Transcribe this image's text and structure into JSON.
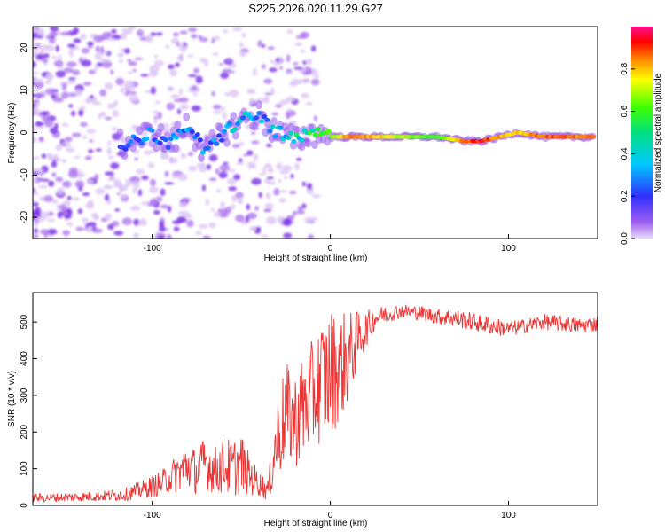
{
  "figure": {
    "title": "S225.2026.020.11.29.G27"
  },
  "chart_data": [
    {
      "type": "heatmap",
      "title": "S225.2026.020.11.29.G27",
      "xlabel": "Height of straight line (km)",
      "ylabel": "Frequency (Hz)",
      "xlim": [
        -167,
        150
      ],
      "ylim": [
        -25,
        25
      ],
      "xticks": [
        -100,
        0,
        100
      ],
      "xtick_labels": [
        "-100",
        "0",
        "100"
      ],
      "yticks": [
        -20,
        -10,
        0,
        10,
        20
      ],
      "ytick_labels": [
        "-20",
        "-10",
        "0",
        "10",
        "20"
      ],
      "colorbar": {
        "label": "Normalized spectral amplitude",
        "range": [
          0,
          1
        ],
        "ticks": [
          0,
          0.2,
          0.4,
          0.6,
          0.8
        ],
        "tick_labels": [
          "0.0",
          "0.2",
          "0.4",
          "0.6",
          "0.8"
        ]
      },
      "ridge": {
        "height_km": [
          -118,
          -110,
          -100,
          -90,
          -80,
          -70,
          -60,
          -50,
          -40,
          -30,
          -20,
          -10,
          0,
          10,
          20,
          40,
          60,
          75,
          85,
          95,
          105,
          120,
          135,
          148
        ],
        "frequency_hz": [
          -3,
          -2,
          0,
          -3,
          2,
          -5,
          0,
          3,
          4,
          0,
          -2,
          0,
          -1,
          -1,
          -1,
          -1,
          -1,
          -2,
          -2,
          -1,
          0,
          -1,
          -1,
          -1
        ],
        "amplitude": [
          0.2,
          0.25,
          0.3,
          0.3,
          0.3,
          0.3,
          0.35,
          0.4,
          0.3,
          0.4,
          0.5,
          0.55,
          0.65,
          0.9,
          0.85,
          0.7,
          0.6,
          0.9,
          0.95,
          0.85,
          0.8,
          0.9,
          0.9,
          0.85
        ]
      }
    },
    {
      "type": "line",
      "xlabel": "Height of straight line (km)",
      "ylabel": "SNR (10 * v/v)",
      "xlim": [
        -167,
        150
      ],
      "ylim": [
        0,
        580
      ],
      "xticks": [
        -100,
        0,
        100
      ],
      "xtick_labels": [
        "-100",
        "0",
        "100"
      ],
      "yticks": [
        0,
        100,
        200,
        300,
        400,
        500
      ],
      "ytick_labels": [
        "0",
        "100",
        "200",
        "300",
        "400",
        "500"
      ],
      "series": [
        {
          "name": "SNR",
          "color": "#ee3333",
          "x": [
            -167,
            -150,
            -130,
            -115,
            -105,
            -95,
            -90,
            -85,
            -80,
            -75,
            -70,
            -65,
            -60,
            -55,
            -50,
            -45,
            -40,
            -35,
            -30,
            -25,
            -20,
            -15,
            -10,
            -5,
            0,
            5,
            10,
            15,
            20,
            25,
            30,
            40,
            50,
            60,
            70,
            80,
            90,
            100,
            110,
            120,
            130,
            140,
            150
          ],
          "values": [
            20,
            22,
            25,
            30,
            45,
            60,
            75,
            90,
            110,
            90,
            120,
            95,
            110,
            100,
            115,
            80,
            60,
            40,
            180,
            250,
            230,
            270,
            300,
            340,
            360,
            380,
            400,
            450,
            480,
            510,
            520,
            530,
            525,
            515,
            510,
            500,
            490,
            480,
            490,
            500,
            495,
            490,
            495
          ],
          "spread": [
            12,
            12,
            14,
            18,
            25,
            35,
            45,
            55,
            70,
            60,
            75,
            65,
            80,
            80,
            85,
            55,
            35,
            30,
            120,
            140,
            130,
            150,
            150,
            170,
            180,
            150,
            130,
            80,
            50,
            30,
            25,
            20,
            20,
            22,
            25,
            25,
            25,
            22,
            20,
            22,
            22,
            22,
            22
          ]
        }
      ]
    }
  ]
}
